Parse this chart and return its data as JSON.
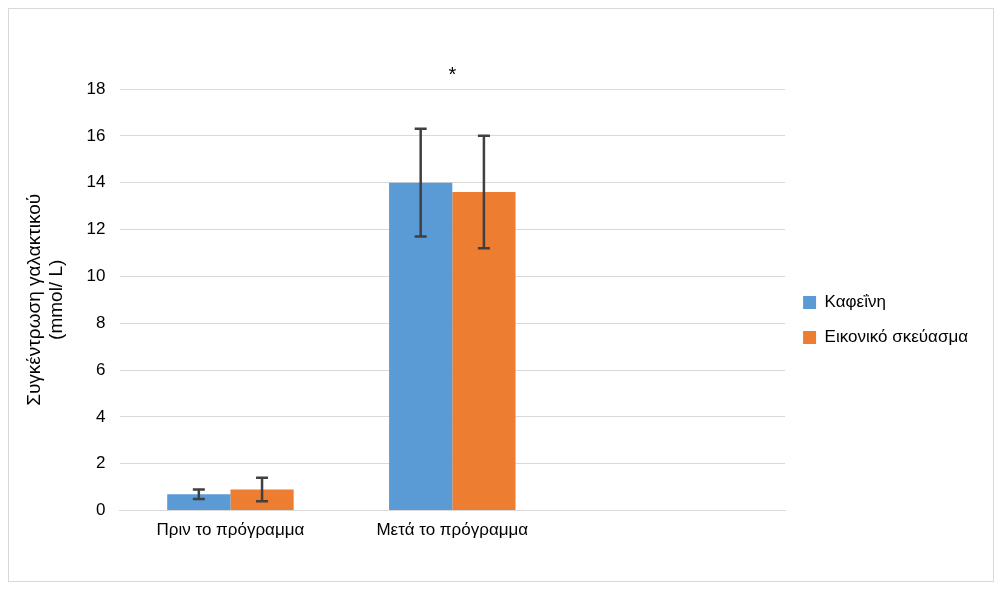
{
  "chart_data": {
    "type": "bar",
    "ylabel": "Συγκέντρωση γαλακτικού\n(mmol/ L)",
    "categories": [
      "Πριν το πρόγραμμα",
      "Μετά το πρόγραμμα",
      null
    ],
    "series": [
      {
        "name": "Καφεΐνη",
        "color": "#5b9bd5",
        "values": [
          0.7,
          14.0,
          null
        ],
        "errors": [
          0.2,
          2.3,
          null
        ]
      },
      {
        "name": "Εικονικό σκεύασμα",
        "color": "#ed7d31",
        "values": [
          0.9,
          13.6,
          null
        ],
        "errors": [
          0.5,
          2.4,
          null
        ]
      }
    ],
    "ylim": [
      0,
      18
    ],
    "yticks": [
      0,
      2,
      4,
      6,
      8,
      10,
      12,
      14,
      16,
      18
    ],
    "grid": "y",
    "legend": "right",
    "annotations": [
      "*"
    ]
  }
}
